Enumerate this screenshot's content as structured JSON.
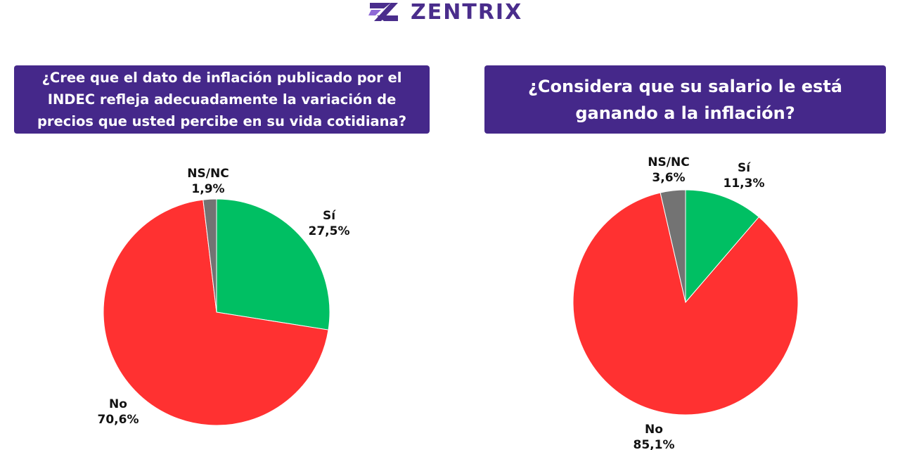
{
  "brand": {
    "name": "ZENTRIX"
  },
  "chart_data": [
    {
      "type": "pie",
      "title": "¿Cree que el dato de inflación publicado por el INDEC refleja adecuadamente la variación de precios que usted percibe en su vida cotidiana?",
      "slices": [
        {
          "label": "Sí",
          "value": 27.5,
          "value_label": "27,5%",
          "color": "#00bf63"
        },
        {
          "label": "No",
          "value": 70.6,
          "value_label": "70,6%",
          "color": "#ff3131"
        },
        {
          "label": "NS/NC",
          "value": 1.9,
          "value_label": "1,9%",
          "color": "#737373"
        }
      ]
    },
    {
      "type": "pie",
      "title": "¿Considera que su salario le está ganando a la inflación?",
      "slices": [
        {
          "label": "Sí",
          "value": 11.3,
          "value_label": "11,3%",
          "color": "#00bf63"
        },
        {
          "label": "No",
          "value": 85.1,
          "value_label": "85,1%",
          "color": "#ff3131"
        },
        {
          "label": "NS/NC",
          "value": 3.6,
          "value_label": "3,6%",
          "color": "#737373"
        }
      ]
    }
  ]
}
